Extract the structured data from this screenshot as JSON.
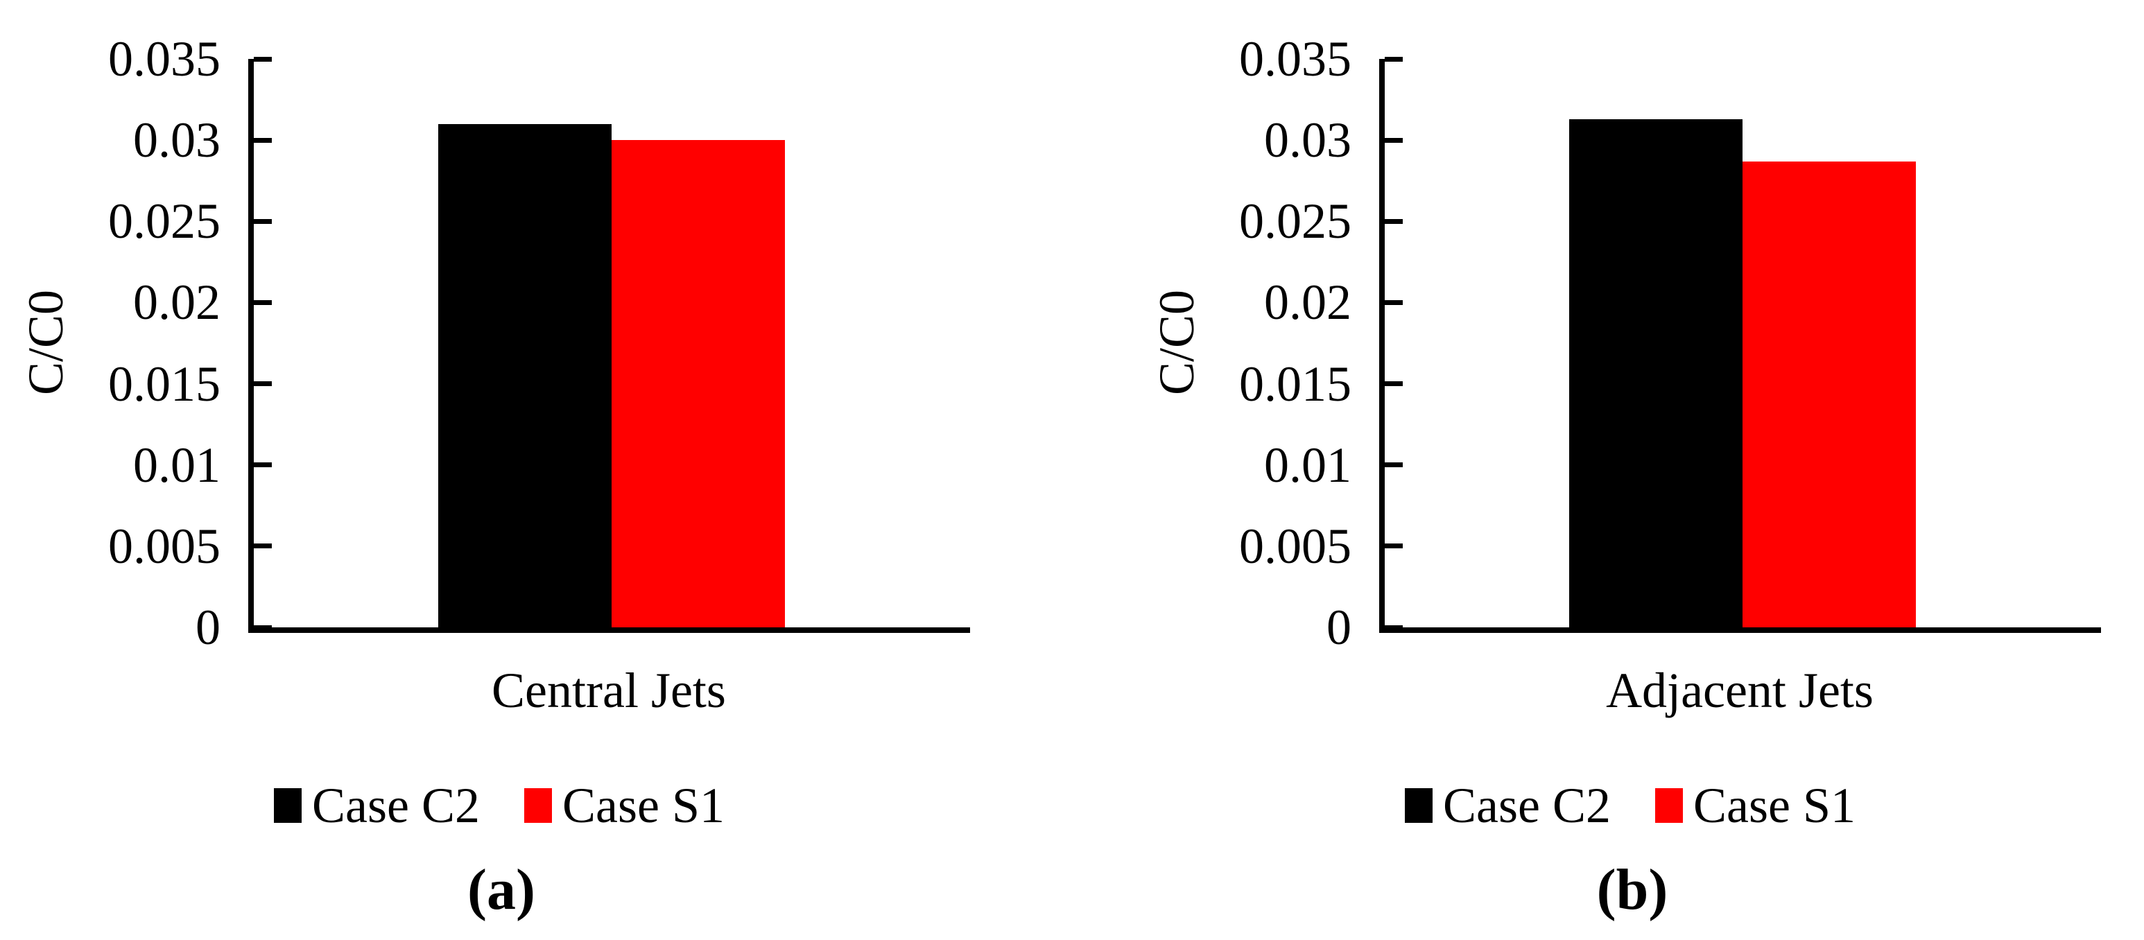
{
  "figure": {
    "background": "#ffffff",
    "text_color": "#000000"
  },
  "chart_data": [
    {
      "type": "bar",
      "panel_caption": "(a)",
      "categories": [
        "Central Jets"
      ],
      "series": [
        {
          "name": "Case C2",
          "color": "#000000",
          "values": [
            0.031
          ]
        },
        {
          "name": "Case S1",
          "color": "#ff0000",
          "values": [
            0.03
          ]
        }
      ],
      "xlabel": "",
      "ylabel": "C/C0",
      "ylim": [
        0,
        0.035
      ],
      "yticks": [
        {
          "label": "0",
          "value": 0
        },
        {
          "label": "0.005",
          "value": 0.005
        },
        {
          "label": "0.01",
          "value": 0.01
        },
        {
          "label": "0.015",
          "value": 0.015
        },
        {
          "label": "0.02",
          "value": 0.02
        },
        {
          "label": "0.025",
          "value": 0.025
        },
        {
          "label": "0.03",
          "value": 0.03
        },
        {
          "label": "0.035",
          "value": 0.035
        }
      ],
      "grid": false,
      "legend_position": "bottom",
      "legend": [
        "Case C2",
        "Case S1"
      ]
    },
    {
      "type": "bar",
      "panel_caption": "(b)",
      "categories": [
        "Adjacent Jets"
      ],
      "series": [
        {
          "name": "Case C2",
          "color": "#000000",
          "values": [
            0.0313
          ]
        },
        {
          "name": "Case S1",
          "color": "#ff0000",
          "values": [
            0.0287
          ]
        }
      ],
      "xlabel": "",
      "ylabel": "C/C0",
      "ylim": [
        0,
        0.035
      ],
      "yticks": [
        {
          "label": "0",
          "value": 0
        },
        {
          "label": "0.005",
          "value": 0.005
        },
        {
          "label": "0.01",
          "value": 0.01
        },
        {
          "label": "0.015",
          "value": 0.015
        },
        {
          "label": "0.02",
          "value": 0.02
        },
        {
          "label": "0.025",
          "value": 0.025
        },
        {
          "label": "0.03",
          "value": 0.03
        },
        {
          "label": "0.035",
          "value": 0.035
        }
      ],
      "grid": false,
      "legend_position": "bottom",
      "legend": [
        "Case C2",
        "Case S1"
      ]
    }
  ]
}
